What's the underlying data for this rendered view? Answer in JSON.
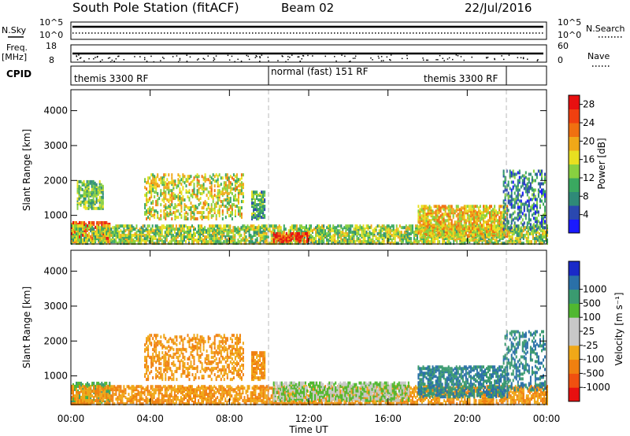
{
  "header": {
    "title": "South Pole Station (fitACF)",
    "beam": "Beam 02",
    "date": "22/Jul/2016"
  },
  "side_labels": {
    "nsky": "N.Sky",
    "freq_line1": "Freq.",
    "freq_line2": "[MHz]",
    "cpid": "CPID",
    "nsearch": "N.Search",
    "nave": "Nave"
  },
  "top_strip": {
    "noise_left_ticks": [
      "10^5",
      "10^0"
    ],
    "noise_right_ticks": [
      "10^5",
      "10^0"
    ],
    "freq_left_ticks": [
      "18",
      "8"
    ],
    "nave_right_ticks": [
      "60",
      "0"
    ]
  },
  "cpid_labels": [
    "themis 3300 RF",
    "normal (fast) 151 RF",
    "themis 3300 RF"
  ],
  "colors": {
    "power_scale": [
      "#1a1aff",
      "#2a48b0",
      "#2f8a78",
      "#3aa860",
      "#88d040",
      "#e8e020",
      "#f0a818",
      "#f07010",
      "#f04010",
      "#e81010"
    ],
    "velocity_scale": [
      "#e81010",
      "#f05010",
      "#f08010",
      "#f0a818",
      "#c8c8c8",
      "#c8c8c8",
      "#50b830",
      "#3a9a70",
      "#2a70a8",
      "#1a2ac8"
    ],
    "marker_line": "#b8b8b8"
  },
  "chart_data": [
    {
      "type": "heatmap",
      "panel": "power",
      "ylabel": "Slant Range [km]",
      "y_ticks": [
        "1000",
        "2000",
        "3000",
        "4000"
      ],
      "ylim": [
        180,
        4600
      ],
      "colorbar_label": "Power [dB]",
      "colorbar_ticks": [
        "4",
        "8",
        "12",
        "16",
        "20",
        "24",
        "28"
      ],
      "colorbar_range": [
        0,
        30
      ],
      "echo_regions": [
        {
          "t": [
            0.0,
            2.0
          ],
          "range": [
            250,
            800
          ],
          "level": 24
        },
        {
          "t": [
            0.3,
            1.6
          ],
          "range": [
            1200,
            2000
          ],
          "level": 12
        },
        {
          "t": [
            3.7,
            8.7
          ],
          "range": [
            900,
            2200
          ],
          "level": 16
        },
        {
          "t": [
            9.1,
            9.8
          ],
          "range": [
            900,
            1700
          ],
          "level": 10
        },
        {
          "t": [
            0.0,
            24.0
          ],
          "range": [
            200,
            700
          ],
          "level": 14
        },
        {
          "t": [
            10.2,
            12.0
          ],
          "range": [
            250,
            500
          ],
          "level": 26
        },
        {
          "t": [
            17.5,
            22.0
          ],
          "range": [
            400,
            1300
          ],
          "level": 18
        },
        {
          "t": [
            21.8,
            23.9
          ],
          "range": [
            600,
            2300
          ],
          "level": 8
        }
      ]
    },
    {
      "type": "heatmap",
      "panel": "velocity",
      "ylabel": "Slant Range [km]",
      "xlabel": "Time UT",
      "x_ticks": [
        "00:00",
        "04:00",
        "08:00",
        "12:00",
        "16:00",
        "20:00",
        "00:00"
      ],
      "y_ticks": [
        "1000",
        "2000",
        "3000",
        "4000"
      ],
      "ylim": [
        180,
        4600
      ],
      "colorbar_label": "Velocity [m s⁻¹]",
      "colorbar_ticks": [
        "-1000",
        "-500",
        "-100",
        "-25",
        "25",
        "100",
        "500",
        "1000"
      ],
      "echo_regions": [
        {
          "t": [
            0.0,
            2.0
          ],
          "range": [
            250,
            800
          ],
          "velocity": 100
        },
        {
          "t": [
            3.7,
            8.7
          ],
          "range": [
            900,
            2200
          ],
          "velocity": -100
        },
        {
          "t": [
            9.1,
            9.8
          ],
          "range": [
            900,
            1700
          ],
          "velocity": -100
        },
        {
          "t": [
            0.0,
            24.0
          ],
          "range": [
            200,
            700
          ],
          "velocity": -100
        },
        {
          "t": [
            10.2,
            17.0
          ],
          "range": [
            300,
            800
          ],
          "velocity": 25
        },
        {
          "t": [
            17.5,
            22.0
          ],
          "range": [
            400,
            1300
          ],
          "velocity": 500
        },
        {
          "t": [
            21.8,
            23.9
          ],
          "range": [
            600,
            2300
          ],
          "velocity": 500
        }
      ]
    }
  ]
}
